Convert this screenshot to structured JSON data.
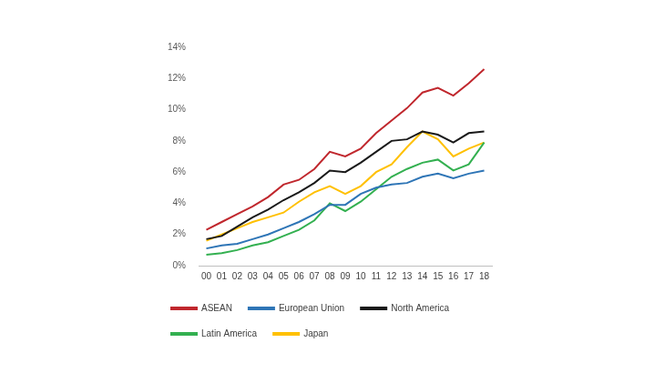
{
  "chart_data": {
    "type": "line",
    "categories": [
      "00",
      "01",
      "02",
      "03",
      "04",
      "05",
      "06",
      "07",
      "08",
      "09",
      "10",
      "11",
      "12",
      "13",
      "14",
      "15",
      "16",
      "17",
      "18"
    ],
    "series": [
      {
        "name": "ASEAN",
        "color": "#c0272d",
        "values": [
          2.3,
          2.8,
          3.3,
          3.8,
          4.4,
          5.2,
          5.5,
          6.2,
          7.3,
          7.0,
          7.5,
          8.5,
          9.3,
          10.1,
          11.1,
          11.4,
          10.9,
          11.7,
          12.6
        ]
      },
      {
        "name": "European Union",
        "color": "#2e75b6",
        "values": [
          1.1,
          1.3,
          1.4,
          1.7,
          2.0,
          2.4,
          2.8,
          3.3,
          3.9,
          3.9,
          4.6,
          5.0,
          5.2,
          5.3,
          5.7,
          5.9,
          5.6,
          5.9,
          6.1
        ]
      },
      {
        "name": "North America",
        "color": "#1a1a1a",
        "values": [
          1.7,
          1.9,
          2.5,
          3.1,
          3.6,
          4.2,
          4.7,
          5.3,
          6.1,
          6.0,
          6.6,
          7.3,
          8.0,
          8.1,
          8.6,
          8.4,
          7.9,
          8.5,
          8.6
        ]
      },
      {
        "name": "Latin America",
        "color": "#33b050",
        "values": [
          0.7,
          0.8,
          1.0,
          1.3,
          1.5,
          1.9,
          2.3,
          2.9,
          4.0,
          3.5,
          4.1,
          4.9,
          5.7,
          6.2,
          6.6,
          6.8,
          6.1,
          6.5,
          7.9
        ]
      },
      {
        "name": "Japan",
        "color": "#ffc000",
        "values": [
          1.6,
          2.0,
          2.4,
          2.8,
          3.1,
          3.4,
          4.1,
          4.7,
          5.1,
          4.6,
          5.1,
          6.0,
          6.5,
          7.6,
          8.6,
          8.1,
          7.0,
          7.5,
          7.9
        ]
      }
    ],
    "ylim": [
      0,
      14
    ],
    "yticks": [
      {
        "value": 0,
        "label": "0%"
      },
      {
        "value": 2,
        "label": "2%"
      },
      {
        "value": 4,
        "label": "4%"
      },
      {
        "value": 6,
        "label": "6%"
      },
      {
        "value": 8,
        "label": "8%"
      },
      {
        "value": 10,
        "label": "10%"
      },
      {
        "value": 12,
        "label": "12%"
      },
      {
        "value": 14,
        "label": "14%"
      }
    ],
    "grid": false,
    "legend": "bottom"
  }
}
